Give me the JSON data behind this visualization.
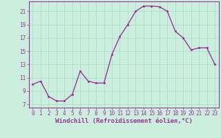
{
  "x": [
    0,
    1,
    2,
    3,
    4,
    5,
    6,
    7,
    8,
    9,
    10,
    11,
    12,
    13,
    14,
    15,
    16,
    17,
    18,
    19,
    20,
    21,
    22,
    23
  ],
  "y": [
    10,
    10.5,
    8.2,
    7.5,
    7.5,
    8.5,
    12,
    10.5,
    10.2,
    10.2,
    14.5,
    17.2,
    19.0,
    21.0,
    21.8,
    21.8,
    21.7,
    21.0,
    18.0,
    17.0,
    15.2,
    15.5,
    15.5,
    13.0
  ],
  "line_color": "#993399",
  "marker": "s",
  "markersize": 2,
  "linewidth": 1.0,
  "background_color": "#cceedd",
  "grid_color": "#aaddcc",
  "xlabel": "Windchill (Refroidissement éolien,°C)",
  "xlabel_fontsize": 6.5,
  "label_color": "#993399",
  "yticks": [
    7,
    9,
    11,
    13,
    15,
    17,
    19,
    21
  ],
  "ylim": [
    6.5,
    22.5
  ],
  "xlim": [
    -0.5,
    23.5
  ],
  "xticks": [
    0,
    1,
    2,
    3,
    4,
    5,
    6,
    7,
    8,
    9,
    10,
    11,
    12,
    13,
    14,
    15,
    16,
    17,
    18,
    19,
    20,
    21,
    22,
    23
  ],
  "tick_fontsize": 5.5
}
